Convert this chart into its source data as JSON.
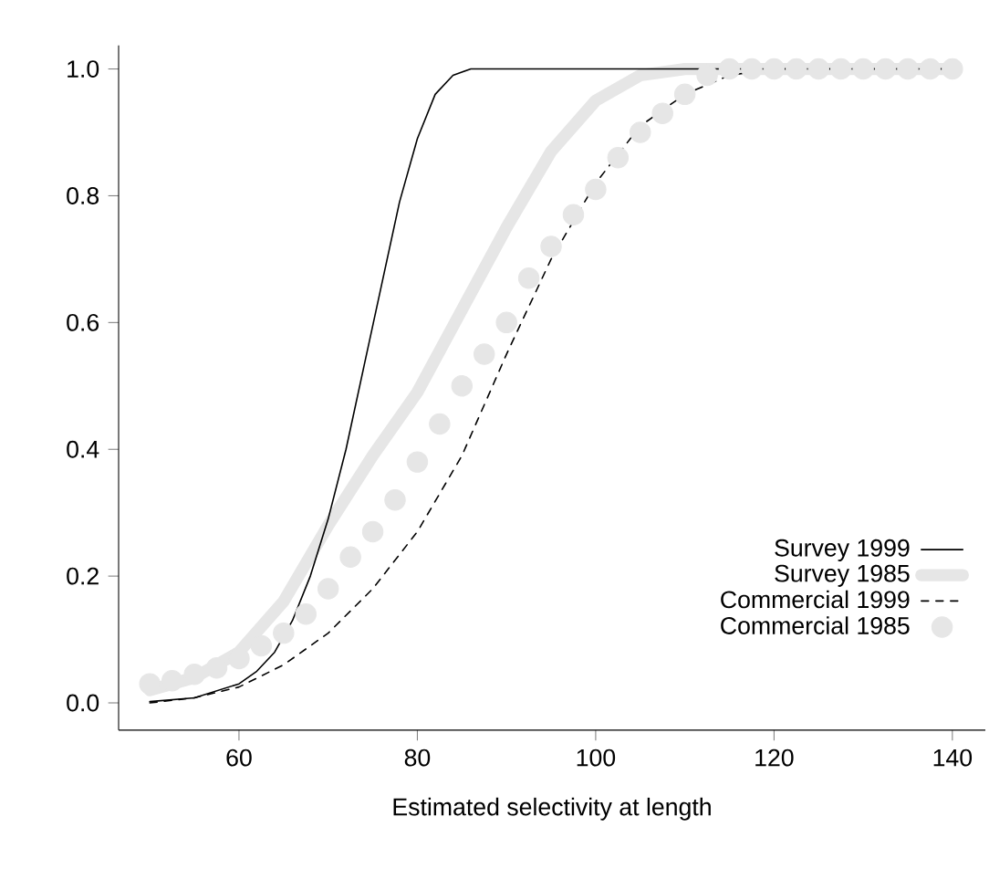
{
  "chart_data": {
    "type": "line",
    "xlabel": "Estimated selectivity at length",
    "xlim": [
      46.5,
      143.7
    ],
    "ylim": [
      -0.043,
      1.037
    ],
    "xticks": [
      60,
      80,
      100,
      120,
      140
    ],
    "yticks": [
      {
        "value": 0,
        "label": "0.0"
      },
      0.2,
      0.4,
      0.6,
      0.8,
      {
        "value": 1,
        "label": "1.0"
      }
    ],
    "grid": false,
    "legend": "bottom right",
    "series": [
      {
        "name": "Survey 1999",
        "color": "#000000",
        "line_style": "solid",
        "x": [
          50,
          55,
          60,
          62,
          64,
          66,
          68,
          70,
          72,
          74,
          76,
          78,
          80,
          82,
          84,
          86,
          88,
          140
        ],
        "values": [
          0.002,
          0.008,
          0.03,
          0.05,
          0.08,
          0.13,
          0.2,
          0.29,
          0.4,
          0.53,
          0.66,
          0.79,
          0.89,
          0.96,
          0.99,
          1.0,
          1.0,
          1.0
        ]
      },
      {
        "name": "Survey 1985",
        "color": "#e6e6e6",
        "line_style": "solid",
        "x": [
          50,
          55,
          60,
          65,
          70,
          75,
          80,
          85,
          90,
          95,
          100,
          105,
          110,
          140
        ],
        "values": [
          0.02,
          0.04,
          0.08,
          0.16,
          0.28,
          0.39,
          0.49,
          0.62,
          0.75,
          0.87,
          0.95,
          0.99,
          1.0,
          1.0
        ]
      },
      {
        "name": "Commercial 1999",
        "color": "#000000",
        "line_style": "dashed",
        "x": [
          50,
          55,
          60,
          65,
          70,
          75,
          80,
          85,
          90,
          95,
          100,
          105,
          110,
          115,
          120,
          140
        ],
        "values": [
          0.0,
          0.008,
          0.025,
          0.06,
          0.11,
          0.18,
          0.27,
          0.39,
          0.55,
          0.7,
          0.82,
          0.91,
          0.96,
          0.99,
          1.0,
          1.0
        ]
      },
      {
        "name": "Commercial 1985",
        "type": "scatter",
        "color": "#e6e6e6",
        "marker": "circle",
        "x": [
          50,
          52.5,
          55,
          57.5,
          60,
          62.5,
          65,
          67.5,
          70,
          72.5,
          75,
          77.5,
          80,
          82.5,
          85,
          87.5,
          90,
          92.5,
          95,
          97.5,
          100,
          102.5,
          105,
          107.5,
          110,
          112.5,
          115,
          117.5,
          120,
          122.5,
          125,
          127.5,
          130,
          132.5,
          135,
          137.5,
          140
        ],
        "values": [
          0.03,
          0.035,
          0.045,
          0.055,
          0.07,
          0.09,
          0.11,
          0.14,
          0.18,
          0.23,
          0.27,
          0.32,
          0.38,
          0.44,
          0.5,
          0.55,
          0.6,
          0.67,
          0.72,
          0.77,
          0.81,
          0.86,
          0.9,
          0.93,
          0.96,
          0.99,
          1.0,
          1.0,
          1.0,
          1.0,
          1.0,
          1.0,
          1.0,
          1.0,
          1.0,
          1.0,
          1.0
        ]
      }
    ]
  }
}
